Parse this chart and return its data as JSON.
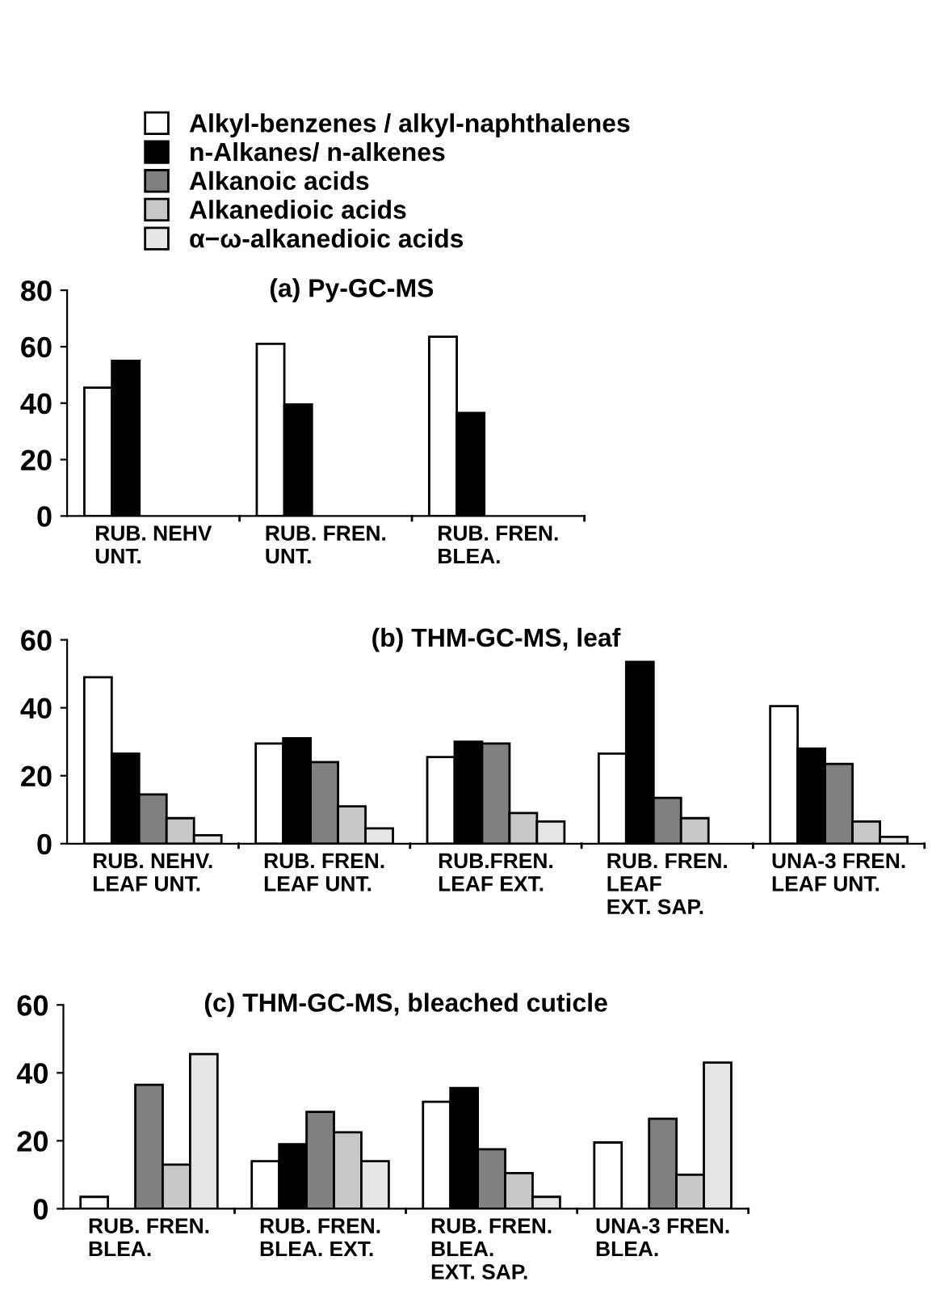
{
  "chart_data": [
    {
      "type": "bar",
      "title": "(a) Py-GC-MS",
      "categories": [
        "RUB. NEHV\nUNT.",
        "RUB. FREN.\nUNT.",
        "RUB. FREN.\nBLEA."
      ],
      "ylim": [
        0,
        80
      ],
      "yticks": [
        0,
        20,
        40,
        60,
        80
      ],
      "grid": false,
      "legend": "top",
      "series": [
        {
          "name": "Alkyl-benzenes / alkyl-naphthalenes",
          "color": "#ffffff",
          "values": [
            45.5,
            61,
            63.5
          ]
        },
        {
          "name": "n-Alkanes/ n-alkenes",
          "color": "#000000",
          "values": [
            55,
            39.5,
            36.5
          ]
        },
        {
          "name": "Alkanoic acids",
          "color": "#808080",
          "values": [
            null,
            null,
            null
          ]
        },
        {
          "name": "Alkanedioic acids",
          "color": "#c8c8c8",
          "values": [
            null,
            null,
            null
          ]
        },
        {
          "name": "α−ω-alkanedioic acids",
          "color": "#e6e6e6",
          "values": [
            null,
            null,
            null
          ]
        }
      ]
    },
    {
      "type": "bar",
      "title": "(b) THM-GC-MS, leaf",
      "categories": [
        "RUB. NEHV.\nLEAF UNT.",
        "RUB. FREN.\nLEAF UNT.",
        "RUB.FREN.\nLEAF EXT.",
        "RUB. FREN.\nLEAF\nEXT. SAP.",
        "UNA-3 FREN.\nLEAF UNT."
      ],
      "ylim": [
        0,
        60
      ],
      "yticks": [
        0,
        20,
        40,
        60
      ],
      "grid": false,
      "series": [
        {
          "color": "#ffffff",
          "values": [
            49,
            29.5,
            25.5,
            26.5,
            40.5
          ]
        },
        {
          "color": "#000000",
          "values": [
            26.5,
            31,
            30,
            53.5,
            28
          ]
        },
        {
          "color": "#808080",
          "values": [
            14.5,
            24,
            29.5,
            13.5,
            23.5
          ]
        },
        {
          "color": "#c8c8c8",
          "values": [
            7.5,
            11,
            9,
            7.5,
            6.5
          ]
        },
        {
          "color": "#e6e6e6",
          "values": [
            2.5,
            4.5,
            6.5,
            null,
            2
          ]
        }
      ]
    },
    {
      "type": "bar",
      "title": "(c) THM-GC-MS, bleached cuticle",
      "categories": [
        "RUB. FREN.\nBLEA.",
        "RUB. FREN.\nBLEA. EXT.",
        "RUB. FREN.\nBLEA.\nEXT. SAP.",
        "UNA-3 FREN.\nBLEA."
      ],
      "ylim": [
        0,
        60
      ],
      "yticks": [
        0,
        20,
        40,
        60
      ],
      "grid": false,
      "series": [
        {
          "color": "#ffffff",
          "values": [
            3.5,
            14,
            31.5,
            19.5
          ]
        },
        {
          "color": "#000000",
          "values": [
            null,
            19,
            35.5,
            null
          ]
        },
        {
          "color": "#808080",
          "values": [
            36.5,
            28.5,
            17.5,
            26.5
          ]
        },
        {
          "color": "#c8c8c8",
          "values": [
            13,
            22.5,
            10.5,
            10
          ]
        },
        {
          "color": "#e6e6e6",
          "values": [
            45.5,
            14,
            3.5,
            43
          ]
        }
      ]
    }
  ]
}
